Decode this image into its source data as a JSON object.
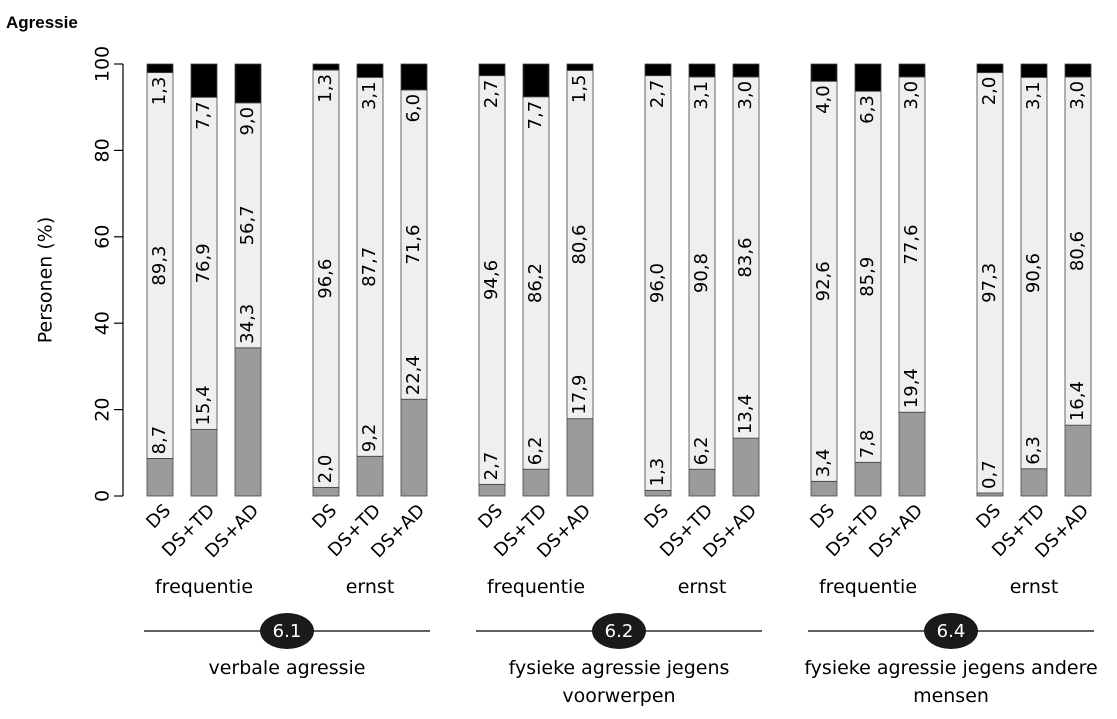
{
  "page": {
    "title": "Agressie"
  },
  "chart_data": {
    "type": "bar",
    "stacked": true,
    "ylabel": "Personen (%)",
    "ylim": [
      0,
      100
    ],
    "yticks": [
      0,
      20,
      40,
      60,
      80,
      100
    ],
    "grid": false,
    "colors": {
      "low": "#9b9b9b",
      "mid": "#efefef",
      "high": "#000000"
    },
    "panels": [
      {
        "id": "6.1",
        "title": "verbale agressie",
        "measures": [
          {
            "label": "frequentie",
            "bars": [
              {
                "category": "DS",
                "values": [
                  8.7,
                  89.3,
                  1.3
                ],
                "labels": [
                  "8,7",
                  "89,3",
                  "1,3"
                ]
              },
              {
                "category": "DS+TD",
                "values": [
                  15.4,
                  76.9,
                  7.7
                ],
                "labels": [
                  "15,4",
                  "76,9",
                  "7,7"
                ]
              },
              {
                "category": "DS+AD",
                "values": [
                  34.3,
                  56.7,
                  9.0
                ],
                "labels": [
                  "34,3",
                  "56,7",
                  "9,0"
                ]
              }
            ]
          },
          {
            "label": "ernst",
            "bars": [
              {
                "category": "DS",
                "values": [
                  2.0,
                  96.6,
                  1.3
                ],
                "labels": [
                  "2,0",
                  "96,6",
                  "1,3"
                ]
              },
              {
                "category": "DS+TD",
                "values": [
                  9.2,
                  87.7,
                  3.1
                ],
                "labels": [
                  "9,2",
                  "87,7",
                  "3,1"
                ]
              },
              {
                "category": "DS+AD",
                "values": [
                  22.4,
                  71.6,
                  6.0
                ],
                "labels": [
                  "22,4",
                  "71,6",
                  "6,0"
                ]
              }
            ]
          }
        ]
      },
      {
        "id": "6.2",
        "title": "fysieke agressie jegens voorwerpen",
        "measures": [
          {
            "label": "frequentie",
            "bars": [
              {
                "category": "DS",
                "values": [
                  2.7,
                  94.6,
                  2.7
                ],
                "labels": [
                  "2,7",
                  "94,6",
                  "2,7"
                ]
              },
              {
                "category": "DS+TD",
                "values": [
                  6.2,
                  86.2,
                  7.7
                ],
                "labels": [
                  "6,2",
                  "86,2",
                  "7,7"
                ]
              },
              {
                "category": "DS+AD",
                "values": [
                  17.9,
                  80.6,
                  1.5
                ],
                "labels": [
                  "17,9",
                  "80,6",
                  "1,5"
                ]
              }
            ]
          },
          {
            "label": "ernst",
            "bars": [
              {
                "category": "DS",
                "values": [
                  1.3,
                  96.0,
                  2.7
                ],
                "labels": [
                  "1,3",
                  "96,0",
                  "2,7"
                ]
              },
              {
                "category": "DS+TD",
                "values": [
                  6.2,
                  90.8,
                  3.1
                ],
                "labels": [
                  "6,2",
                  "90,8",
                  "3,1"
                ]
              },
              {
                "category": "DS+AD",
                "values": [
                  13.4,
                  83.6,
                  3.0
                ],
                "labels": [
                  "13,4",
                  "83,6",
                  "3,0"
                ]
              }
            ]
          }
        ]
      },
      {
        "id": "6.4",
        "title": "fysieke agressie jegens andere mensen",
        "measures": [
          {
            "label": "frequentie",
            "bars": [
              {
                "category": "DS",
                "values": [
                  3.4,
                  92.6,
                  4.0
                ],
                "labels": [
                  "3,4",
                  "92,6",
                  "4,0"
                ]
              },
              {
                "category": "DS+TD",
                "values": [
                  7.8,
                  85.9,
                  6.3
                ],
                "labels": [
                  "7,8",
                  "85,9",
                  "6,3"
                ]
              },
              {
                "category": "DS+AD",
                "values": [
                  19.4,
                  77.6,
                  3.0
                ],
                "labels": [
                  "19,4",
                  "77,6",
                  "3,0"
                ]
              }
            ]
          },
          {
            "label": "ernst",
            "bars": [
              {
                "category": "DS",
                "values": [
                  0.7,
                  97.3,
                  2.0
                ],
                "labels": [
                  "0,7",
                  "97,3",
                  "2,0"
                ]
              },
              {
                "category": "DS+TD",
                "values": [
                  6.3,
                  90.6,
                  3.1
                ],
                "labels": [
                  "6,3",
                  "90,6",
                  "3,1"
                ]
              },
              {
                "category": "DS+AD",
                "values": [
                  16.4,
                  80.6,
                  3.0
                ],
                "labels": [
                  "16,4",
                  "80,6",
                  "3,0"
                ]
              }
            ]
          }
        ]
      }
    ]
  }
}
